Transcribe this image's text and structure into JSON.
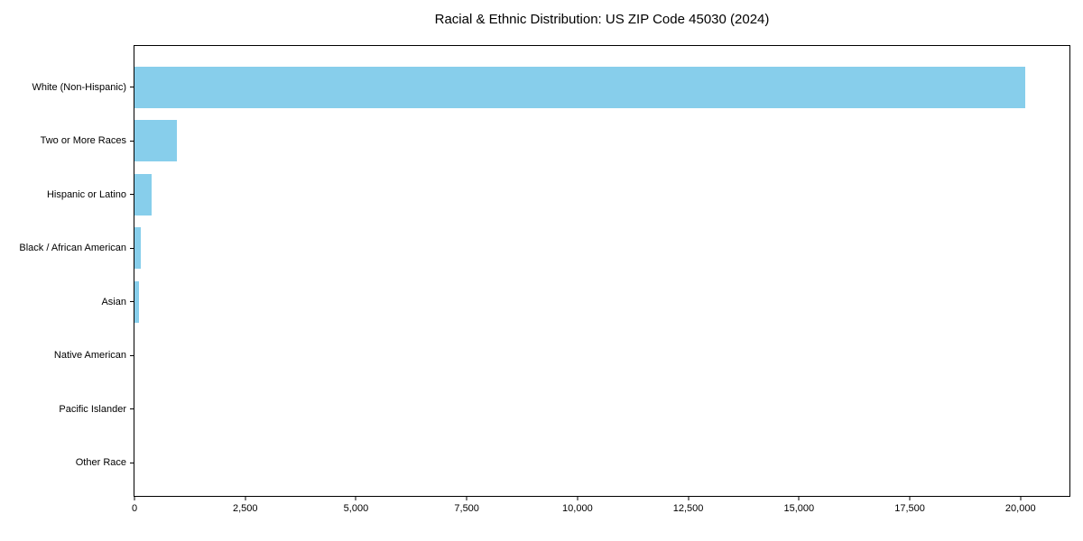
{
  "colors": {
    "bar": "#87CEEB",
    "axis": "#000000",
    "text": "#000000",
    "background": "#ffffff"
  },
  "chart_data": {
    "type": "bar",
    "orientation": "horizontal",
    "title": "Racial & Ethnic Distribution: US ZIP Code 45030 (2024)",
    "xlabel": "",
    "ylabel": "",
    "grid": false,
    "legend": null,
    "categories": [
      "White (Non-Hispanic)",
      "Two or More Races",
      "Hispanic or Latino",
      "Black / African American",
      "Asian",
      "Native American",
      "Pacific Islander",
      "Other Race"
    ],
    "values": [
      20100,
      950,
      380,
      145,
      105,
      0,
      0,
      0
    ],
    "xlim": [
      0,
      21105
    ],
    "xticks": [
      0,
      2500,
      5000,
      7500,
      10000,
      12500,
      15000,
      17500,
      20000
    ],
    "xtick_labels": [
      "0",
      "2,500",
      "5,000",
      "7,500",
      "10,000",
      "12,500",
      "15,000",
      "17,500",
      "20,000"
    ]
  }
}
